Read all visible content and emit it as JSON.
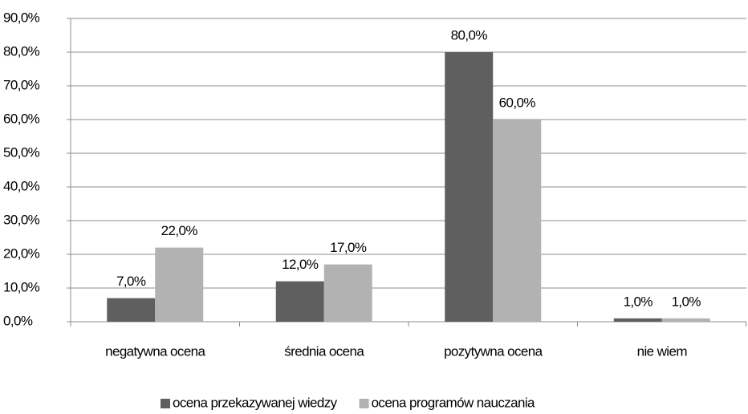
{
  "chart_data": {
    "type": "bar",
    "categories": [
      "negatywna ocena",
      "średnia ocena",
      "pozytywna ocena",
      "nie wiem"
    ],
    "series": [
      {
        "name": "ocena przekazywanej wiedzy",
        "color": "#5f5f5f",
        "values": [
          7,
          12,
          80,
          1
        ],
        "value_labels": [
          "7,0%",
          "12,0%",
          "80,0%",
          "1,0%"
        ]
      },
      {
        "name": "ocena programów nauczania",
        "color": "#b2b2b2",
        "values": [
          22,
          17,
          60,
          1
        ],
        "value_labels": [
          "22,0%",
          "17,0%",
          "60,0%",
          "1,0%"
        ]
      }
    ],
    "ylim": [
      0,
      90
    ],
    "yticks": [
      {
        "value": 0,
        "label": "0,0%"
      },
      {
        "value": 10,
        "label": "10,0%"
      },
      {
        "value": 20,
        "label": "20,0%"
      },
      {
        "value": 30,
        "label": "30,0%"
      },
      {
        "value": 40,
        "label": "40,0%"
      },
      {
        "value": 50,
        "label": "50,0%"
      },
      {
        "value": 60,
        "label": "60,0%"
      },
      {
        "value": 70,
        "label": "70,0%"
      },
      {
        "value": 80,
        "label": "80,0%"
      },
      {
        "value": 90,
        "label": "90,0%"
      }
    ],
    "grid": true,
    "legend": "bottom"
  }
}
